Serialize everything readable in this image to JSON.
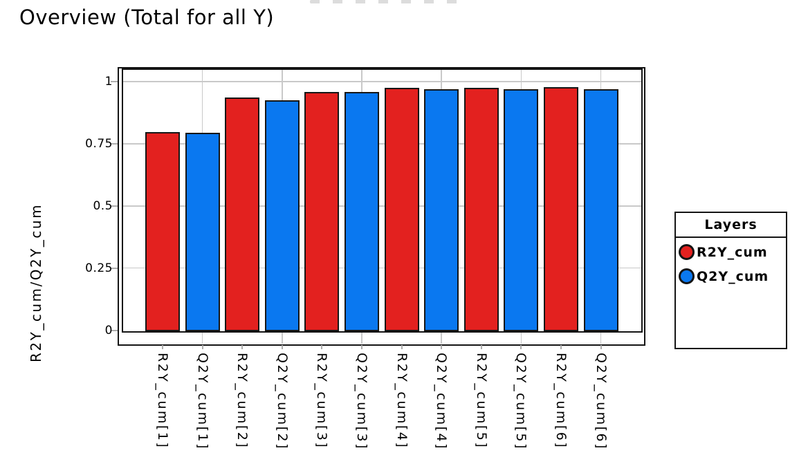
{
  "title": "Overview (Total for all Y)",
  "colors": {
    "r2y": "#e3211f",
    "q2y": "#0a78f0",
    "grid": "#c9c9c9",
    "frame": "#141414",
    "background": "#ffffff"
  },
  "y_axis": {
    "title": "R2Y_cum/Q2Y_cum",
    "tick_labels": [
      "0",
      "0.25",
      "0.5",
      "0.75",
      "1"
    ]
  },
  "legend": {
    "title": "Layers",
    "items": [
      {
        "label": "R2Y_cum",
        "color": "#e3211f",
        "marker": "circle-icon"
      },
      {
        "label": "Q2Y_cum",
        "color": "#0a78f0",
        "marker": "circle-icon"
      }
    ]
  },
  "chart_data": {
    "type": "bar",
    "title": "Overview (Total for all Y)",
    "xlabel": "",
    "ylabel": "R2Y_cum/Q2Y_cum",
    "ylim": [
      0,
      1.05
    ],
    "yticks": [
      0,
      0.25,
      0.5,
      0.75,
      1
    ],
    "grid": true,
    "legend_position": "right",
    "categories": [
      "R2Y_cum[1]",
      "Q2Y_cum[1]",
      "R2Y_cum[2]",
      "Q2Y_cum[2]",
      "R2Y_cum[3]",
      "Q2Y_cum[3]",
      "R2Y_cum[4]",
      "Q2Y_cum[4]",
      "R2Y_cum[5]",
      "Q2Y_cum[5]",
      "R2Y_cum[6]",
      "Q2Y_cum[6]"
    ],
    "values": [
      0.799,
      0.796,
      0.937,
      0.925,
      0.961,
      0.959,
      0.976,
      0.971,
      0.977,
      0.972,
      0.979,
      0.972
    ],
    "bar_series": [
      "R2Y_cum",
      "Q2Y_cum",
      "R2Y_cum",
      "Q2Y_cum",
      "R2Y_cum",
      "Q2Y_cum",
      "R2Y_cum",
      "Q2Y_cum",
      "R2Y_cum",
      "Q2Y_cum",
      "R2Y_cum",
      "Q2Y_cum"
    ],
    "series": [
      {
        "name": "R2Y_cum",
        "color": "#e3211f",
        "values": [
          0.799,
          0.937,
          0.961,
          0.976,
          0.977,
          0.979
        ]
      },
      {
        "name": "Q2Y_cum",
        "color": "#0a78f0",
        "values": [
          0.796,
          0.925,
          0.959,
          0.971,
          0.972,
          0.972
        ]
      }
    ]
  }
}
